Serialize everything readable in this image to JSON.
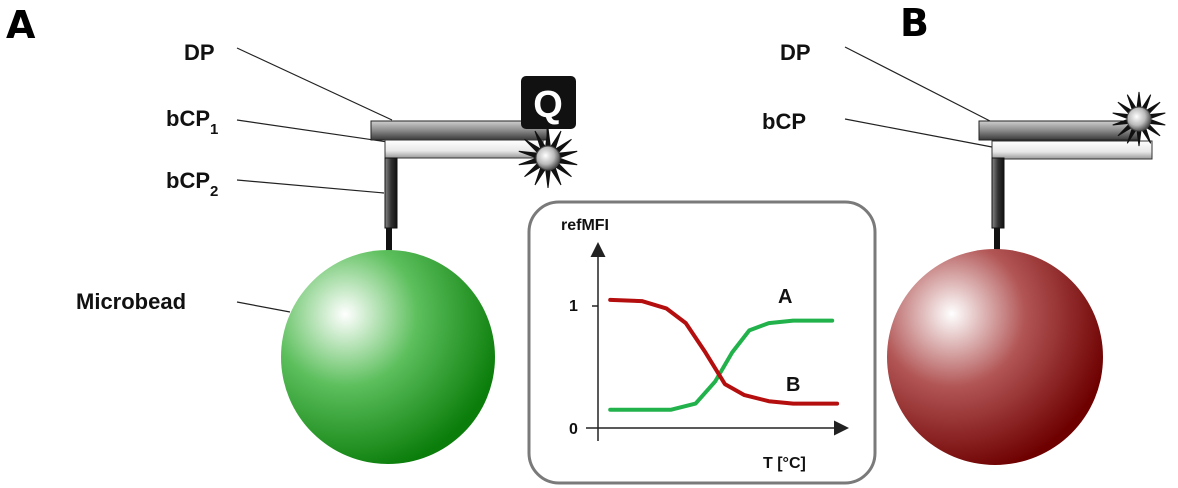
{
  "panel_a": {
    "letter": "A",
    "labels": {
      "dp": "DP",
      "bcp1_main": "bCP",
      "bcp1_sub": "1",
      "bcp2_main": "bCP",
      "bcp2_sub": "2",
      "microbead": "Microbead"
    },
    "quencher": "Q",
    "bead_color": "#0a8a0a"
  },
  "panel_b": {
    "letter": "B",
    "labels": {
      "dp": "DP",
      "bcp": "bCP"
    },
    "bead_color": "#7a0000"
  },
  "chart_data": {
    "type": "line",
    "ylabel": "refMFI",
    "xlabel": "T [°C]",
    "yticks": [
      "1",
      "0"
    ],
    "series": [
      {
        "name": "A",
        "color": "#22b24c",
        "points": [
          [
            0.05,
            0.15
          ],
          [
            0.3,
            0.15
          ],
          [
            0.4,
            0.2
          ],
          [
            0.48,
            0.38
          ],
          [
            0.55,
            0.62
          ],
          [
            0.62,
            0.8
          ],
          [
            0.7,
            0.86
          ],
          [
            0.8,
            0.88
          ],
          [
            0.96,
            0.88
          ]
        ]
      },
      {
        "name": "B",
        "color": "#b40e0e",
        "points": [
          [
            0.05,
            1.05
          ],
          [
            0.18,
            1.04
          ],
          [
            0.28,
            0.98
          ],
          [
            0.36,
            0.86
          ],
          [
            0.44,
            0.62
          ],
          [
            0.52,
            0.36
          ],
          [
            0.6,
            0.27
          ],
          [
            0.7,
            0.22
          ],
          [
            0.8,
            0.2
          ],
          [
            0.98,
            0.2
          ]
        ]
      }
    ]
  }
}
